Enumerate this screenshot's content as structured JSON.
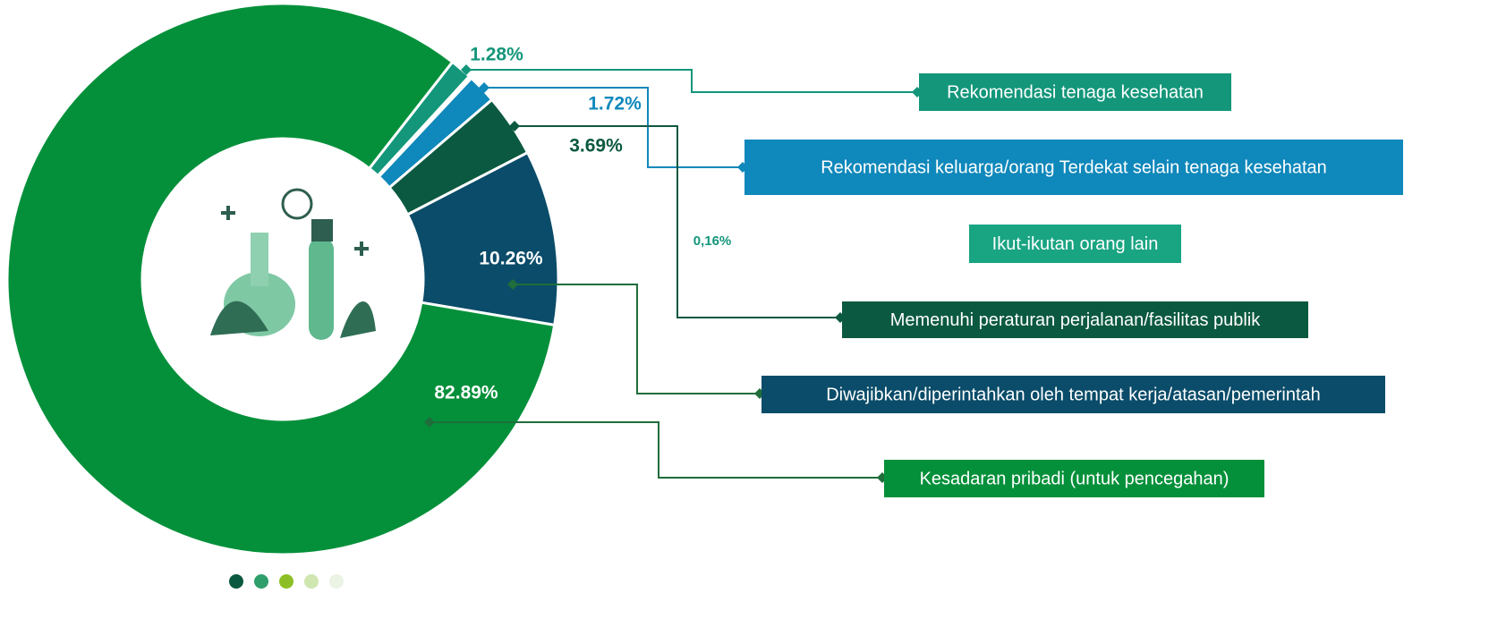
{
  "chart_data": {
    "type": "pie",
    "donut": true,
    "categories": [
      "Rekomendasi tenaga kesehatan",
      "Ikut-ikutan orang lain",
      "Rekomendasi keluarga/orang Terdekat selain tenaga kesehatan",
      "Memenuhi peraturan perjalanan/fasilitas publik",
      "Diwajibkan/diperintahkan oleh tempat kerja/atasan/pemerintah",
      "Kesadaran pribadi (untuk pencegahan)"
    ],
    "values": [
      1.28,
      0.16,
      1.72,
      3.69,
      10.26,
      82.89
    ],
    "value_labels": [
      "1.28%",
      "0,16%",
      "1.72%",
      "3.69%",
      "10.26%",
      "82.89%"
    ],
    "colors": [
      "#13967a",
      "#19a482",
      "#0f88bb",
      "#0b5940",
      "#0a4c69",
      "#04903a"
    ]
  }
}
